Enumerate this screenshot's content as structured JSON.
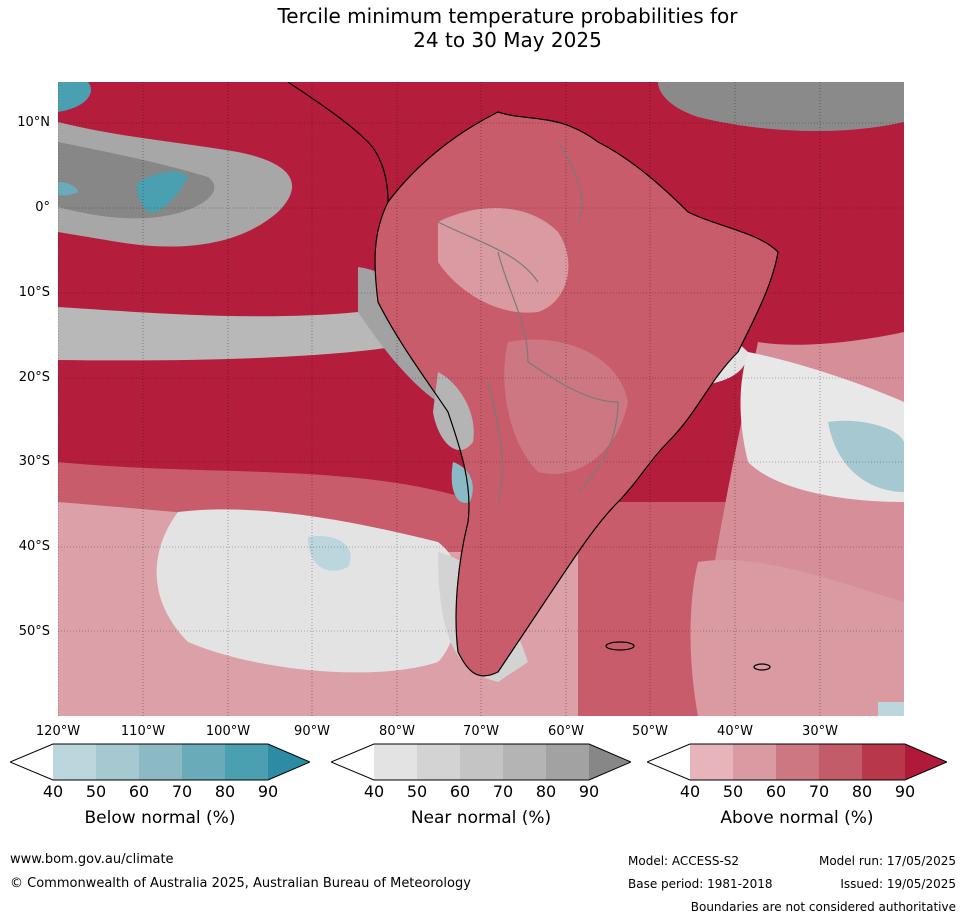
{
  "title_line1": "Tercile minimum temperature probabilities for",
  "title_line2": "24 to 30 May 2025",
  "map": {
    "lat_labels": [
      "10°N",
      "0°",
      "10°S",
      "20°S",
      "30°S",
      "40°S",
      "50°S"
    ],
    "lon_labels": [
      "120°W",
      "110°W",
      "100°W",
      "90°W",
      "80°W",
      "70°W",
      "60°W",
      "50°W",
      "40°W",
      "30°W"
    ]
  },
  "colorbars": {
    "below": {
      "label": "Below normal (%)",
      "ticks": [
        "40",
        "50",
        "60",
        "70",
        "80",
        "90"
      ],
      "colors": [
        "#ffffff",
        "#bcd6dd",
        "#a6c8d0",
        "#8cbac4",
        "#6aabb9",
        "#4a9fb0",
        "#2b8ca3"
      ]
    },
    "near": {
      "label": "Near normal (%)",
      "ticks": [
        "40",
        "50",
        "60",
        "70",
        "80",
        "90"
      ],
      "colors": [
        "#ffffff",
        "#e3e3e3",
        "#d3d3d3",
        "#c4c4c4",
        "#b4b4b4",
        "#a2a2a2",
        "#878787"
      ]
    },
    "above": {
      "label": "Above normal (%)",
      "ticks": [
        "40",
        "50",
        "60",
        "70",
        "80",
        "90"
      ],
      "colors": [
        "#ffffff",
        "#e6b4ba",
        "#d99aa2",
        "#cc7782",
        "#c25c69",
        "#b8374b",
        "#b0193a"
      ]
    }
  },
  "footer": {
    "url": "www.bom.gov.au/climate",
    "copyright": "© Commonwealth of Australia 2025, Australian Bureau of Meteorology",
    "model": "Model: ACCESS-S2",
    "base_period": "Base period: 1981-2018",
    "model_run": "Model run: 17/05/2025",
    "issued": "Issued: 19/05/2025",
    "boundaries": "Boundaries are not considered authoritative"
  }
}
